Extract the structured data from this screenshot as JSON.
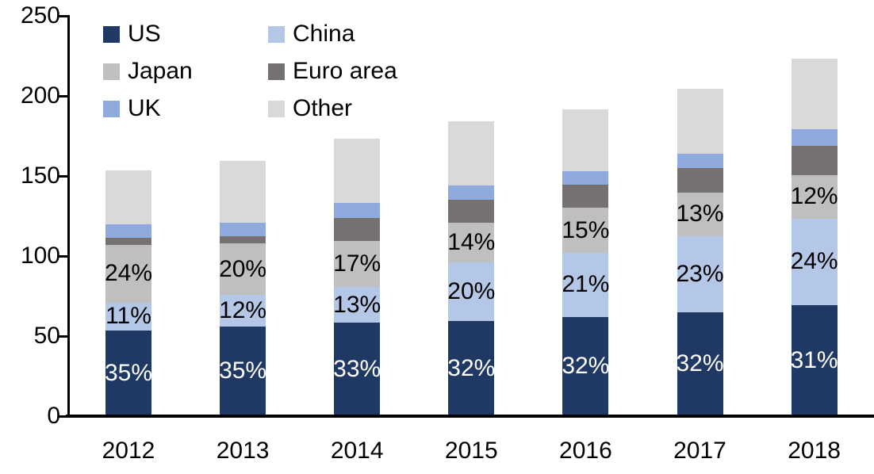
{
  "chart_data": {
    "type": "bar",
    "subtype": "stacked-vertical",
    "title": "",
    "xlabel": "",
    "ylabel": "",
    "categories": [
      "2012",
      "2013",
      "2014",
      "2015",
      "2016",
      "2017",
      "2018"
    ],
    "series": [
      {
        "name": "US",
        "color": "#1F3864",
        "values": [
          53.5,
          56,
          58.5,
          59.5,
          62,
          65,
          69.5
        ],
        "data_labels": [
          "35%",
          "35%",
          "33%",
          "32%",
          "32%",
          "32%",
          "31%"
        ],
        "data_label_color": "#FFFFFF"
      },
      {
        "name": "China",
        "color": "#B4C7E7",
        "values": [
          17.5,
          19.5,
          22,
          36.5,
          40,
          47.5,
          54
        ],
        "data_labels": [
          "11%",
          "12%",
          "13%",
          "20%",
          "21%",
          "23%",
          "24%"
        ],
        "data_label_color": "#000000"
      },
      {
        "name": "Japan",
        "color": "#BFBFBF",
        "values": [
          36,
          32.5,
          29,
          25,
          28,
          27,
          27
        ],
        "data_labels": [
          "24%",
          "20%",
          "17%",
          "14%",
          "15%",
          "13%",
          "12%"
        ],
        "data_label_color": "#000000"
      },
      {
        "name": "Euro area",
        "color": "#767171",
        "values": [
          4.5,
          4.5,
          14.5,
          14,
          14.5,
          15.5,
          18.5
        ],
        "data_labels": null,
        "data_label_color": null
      },
      {
        "name": "UK",
        "color": "#8FAADC",
        "values": [
          8.5,
          8.5,
          9,
          9,
          8.5,
          9,
          10
        ],
        "data_labels": null,
        "data_label_color": null
      },
      {
        "name": "Other",
        "color": "#D9D9D9",
        "values": [
          33.5,
          38.5,
          40.5,
          40,
          38.5,
          40.5,
          44.5
        ],
        "data_labels": null,
        "data_label_color": null
      }
    ],
    "totals_approx": [
      153.5,
      159.5,
      173.5,
      184,
      191.5,
      204.5,
      223.5
    ],
    "y_axis": {
      "min": 0,
      "max": 250,
      "tick_labels": [
        "0",
        "50",
        "100",
        "150",
        "200",
        "250"
      ],
      "tick_values": [
        0,
        50,
        100,
        150,
        200,
        250
      ]
    },
    "grid": "off",
    "legend": {
      "position": "top-left-inside",
      "columns": 2,
      "entries": [
        "US",
        "China",
        "Japan",
        "Euro area",
        "UK",
        "Other"
      ]
    },
    "axis_color": "#000000",
    "text_color": "#000000",
    "background_color": "#FFFFFF"
  }
}
